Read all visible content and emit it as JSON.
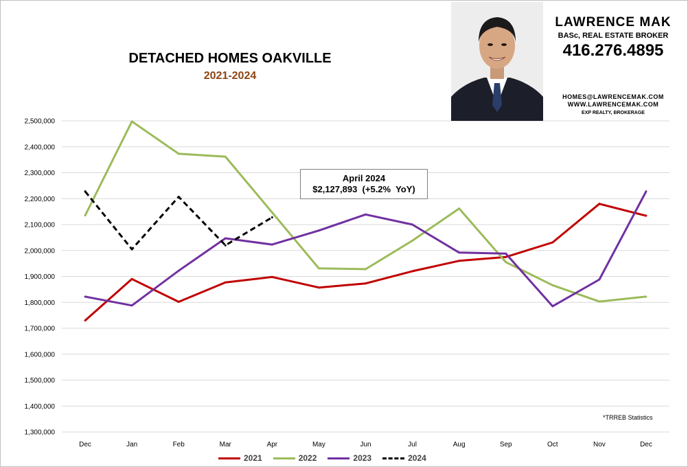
{
  "header": {
    "title": "DETACHED HOMES OAKVILLE",
    "subtitle": "2021-2024"
  },
  "agent": {
    "name": "LAWRENCE MAK",
    "title": "BASc, REAL ESTATE BROKER",
    "phone": "416.276.4895",
    "email": "HOMES@LAWRENCEMAK.COM",
    "website": "WWW.LAWRENCEMAK.COM",
    "brokerage": "EXP REALTY, BROKERAGE"
  },
  "callout": {
    "title": "April 2024",
    "value": "$2,127,893  (+5.2%  YoY)"
  },
  "source_note": "*TRREB Statistics",
  "colors": {
    "2021": "#c00000",
    "2022": "#9bbb59",
    "2023": "#7030a0",
    "2024": "#000000",
    "grid": "#d9d9d9"
  },
  "chart_data": {
    "type": "line",
    "title": "DETACHED HOMES OAKVILLE",
    "subtitle": "2021-2024",
    "categories": [
      "Dec",
      "Jan",
      "Feb",
      "Mar",
      "Apr",
      "May",
      "Jun",
      "Jul",
      "Aug",
      "Sep",
      "Oct",
      "Nov",
      "Dec"
    ],
    "ylim": [
      1300000,
      2500000
    ],
    "yticks": [
      "1,300,000",
      "1,400,000",
      "1,500,000",
      "1,600,000",
      "1,700,000",
      "1,800,000",
      "1,900,000",
      "2,000,000",
      "2,100,000",
      "2,200,000",
      "2,300,000",
      "2,400,000",
      "2,500,000"
    ],
    "grid": "horizontal",
    "legend_position": "bottom",
    "series": [
      {
        "name": "2021",
        "color": "#c00000",
        "dashed": false,
        "values": [
          1730000,
          1890000,
          1802000,
          1877000,
          1898000,
          1857000,
          1873000,
          1920000,
          1960000,
          1975000,
          2031000,
          2180000,
          2134000
        ]
      },
      {
        "name": "2022",
        "color": "#9bbb59",
        "dashed": false,
        "values": [
          2135000,
          2498000,
          2373000,
          2362000,
          2147000,
          1931000,
          1928000,
          2038000,
          2162000,
          1955000,
          1866000,
          1803000,
          1822000
        ]
      },
      {
        "name": "2023",
        "color": "#7030a0",
        "dashed": false,
        "values": [
          1822000,
          1788000,
          1922000,
          2047000,
          2023000,
          2077000,
          2139000,
          2100000,
          1992000,
          1988000,
          1785000,
          1888000,
          2228000
        ]
      },
      {
        "name": "2024",
        "color": "#000000",
        "dashed": true,
        "values": [
          2228000,
          2005000,
          2207000,
          2020000,
          2127893,
          null,
          null,
          null,
          null,
          null,
          null,
          null,
          null
        ]
      }
    ]
  }
}
